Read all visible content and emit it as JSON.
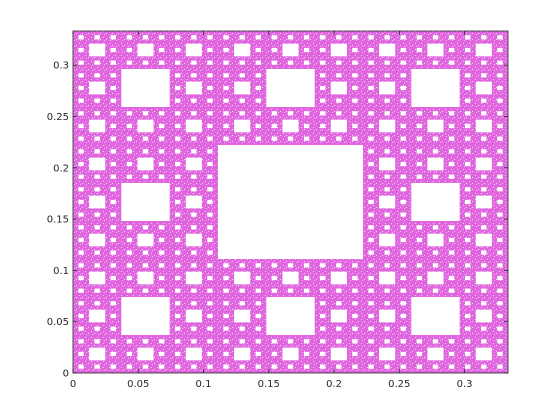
{
  "chart_data": {
    "type": "scatter",
    "title": "",
    "xlabel": "",
    "ylabel": "",
    "xlim": [
      0,
      0.3333
    ],
    "ylim": [
      0,
      0.3333
    ],
    "x_ticks": [
      0,
      0.05,
      0.1,
      0.15,
      0.2,
      0.25,
      0.3
    ],
    "x_tick_labels": [
      "0",
      "0.05",
      "0.1",
      "0.15",
      "0.2",
      "0.25",
      "0.3"
    ],
    "y_ticks": [
      0,
      0.05,
      0.1,
      0.15,
      0.2,
      0.25,
      0.3
    ],
    "y_tick_labels": [
      "0",
      "0.05",
      "0.1",
      "0.15",
      "0.2",
      "0.25",
      "0.3"
    ],
    "grid": false,
    "legend": "none",
    "series": [
      {
        "marker_color": "#e066e0",
        "pattern": "Sierpinski carpet (chaos-game points)",
        "region": {
          "x": [
            0,
            0.3333
          ],
          "y": [
            0,
            0.3333
          ]
        },
        "recursion_levels": 4
      }
    ],
    "colors": {
      "marker": "#e066e0",
      "axes": "#262626",
      "background": "#ffffff"
    }
  }
}
